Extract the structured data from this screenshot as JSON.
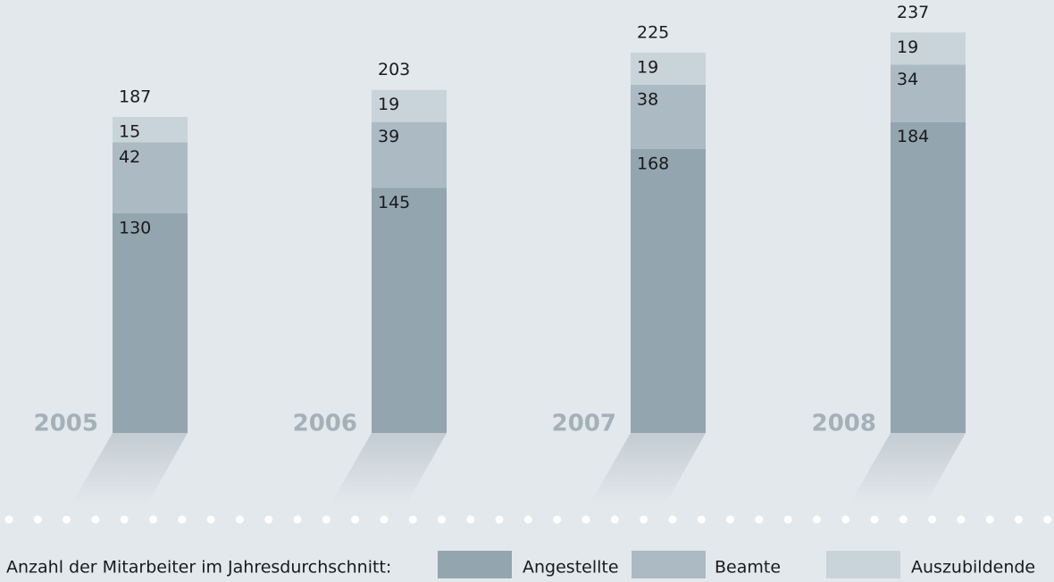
{
  "chart_data": {
    "type": "bar",
    "stacked": true,
    "categories": [
      "2005",
      "2006",
      "2007",
      "2008"
    ],
    "series": [
      {
        "name": "Angestellte",
        "color": "#93a5af",
        "values": [
          130,
          145,
          168,
          184
        ]
      },
      {
        "name": "Beamte",
        "color": "#abbac3",
        "values": [
          42,
          39,
          38,
          34
        ]
      },
      {
        "name": "Auszubildende",
        "color": "#c9d3da",
        "values": [
          15,
          19,
          19,
          19
        ]
      }
    ],
    "totals": [
      187,
      203,
      225,
      237
    ],
    "legend_title": "Anzahl der Mitarbeiter im Jahresdurchschnitt:"
  }
}
